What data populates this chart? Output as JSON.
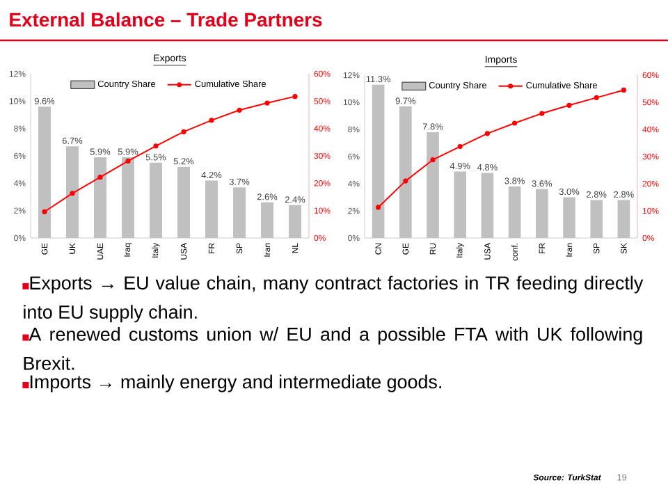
{
  "chart_data": [
    {
      "type": "bar",
      "title": "Exports",
      "categories": [
        "GE",
        "UK",
        "UAE",
        "Iraq",
        "Italy",
        "USA",
        "FR",
        "SP",
        "Iran",
        "NL"
      ],
      "series": [
        {
          "name": "Country Share",
          "type": "bar",
          "color": "#c0c0c0",
          "values": [
            9.6,
            6.7,
            5.9,
            5.9,
            5.5,
            5.2,
            4.2,
            3.7,
            2.6,
            2.4
          ],
          "value_labels": [
            "9.6%",
            "6.7%",
            "5.9%",
            "5.9%",
            "5.5%",
            "5.2%",
            "4.2%",
            "3.7%",
            "2.6%",
            "2.4%"
          ]
        },
        {
          "name": "Cumulative Share",
          "type": "line",
          "axis": "y2",
          "color": "#ff0000",
          "values": [
            9.6,
            16.3,
            22.2,
            28.1,
            33.6,
            38.8,
            43.0,
            46.7,
            49.3,
            51.7
          ]
        }
      ],
      "ylim": [
        0,
        12
      ],
      "yticks": [
        {
          "value": 0,
          "label": "0%"
        },
        {
          "value": 2,
          "label": "2%"
        },
        {
          "value": 4,
          "label": "4%"
        },
        {
          "value": 6,
          "label": "6%"
        },
        {
          "value": 8,
          "label": "8%"
        },
        {
          "value": 10,
          "label": "10%"
        },
        {
          "value": 12,
          "label": "12%"
        }
      ],
      "y2lim": [
        0,
        60
      ],
      "y2ticks": [
        {
          "value": 0,
          "label": "0%"
        },
        {
          "value": 10,
          "label": "10%"
        },
        {
          "value": 20,
          "label": "20%"
        },
        {
          "value": 30,
          "label": "30%"
        },
        {
          "value": 40,
          "label": "40%"
        },
        {
          "value": 50,
          "label": "50%"
        },
        {
          "value": 60,
          "label": "60%"
        }
      ],
      "legend": "top",
      "marker": "circle"
    },
    {
      "type": "bar",
      "title": "Imports",
      "categories": [
        "CN",
        "GE",
        "RU",
        "Italy",
        "USA",
        "conf.",
        "FR",
        "Iran",
        "SP",
        "SK"
      ],
      "series": [
        {
          "name": "Country Share",
          "type": "bar",
          "color": "#c0c0c0",
          "values": [
            11.3,
            9.7,
            7.8,
            4.9,
            4.8,
            3.8,
            3.6,
            3.0,
            2.8,
            2.8
          ],
          "value_labels": [
            "11.3%",
            "9.7%",
            "7.8%",
            "4.9%",
            "4.8%",
            "3.8%",
            "3.6%",
            "3.0%",
            "2.8%",
            "2.8%"
          ]
        },
        {
          "name": "Cumulative Share",
          "type": "line",
          "axis": "y2",
          "color": "#ff0000",
          "values": [
            11.3,
            21.0,
            28.8,
            33.7,
            38.5,
            42.3,
            45.9,
            48.9,
            51.7,
            54.5
          ]
        }
      ],
      "ylim": [
        0,
        12
      ],
      "yticks": [
        {
          "value": 0,
          "label": "0%"
        },
        {
          "value": 2,
          "label": "2%"
        },
        {
          "value": 4,
          "label": "4%"
        },
        {
          "value": 6,
          "label": "6%"
        },
        {
          "value": 8,
          "label": "8%"
        },
        {
          "value": 10,
          "label": "10%"
        },
        {
          "value": 12,
          "label": "12%"
        }
      ],
      "y2lim": [
        0,
        60
      ],
      "y2ticks": [
        {
          "value": 0,
          "label": "0%"
        },
        {
          "value": 10,
          "label": "10%"
        },
        {
          "value": 20,
          "label": "20%"
        },
        {
          "value": 30,
          "label": "30%"
        },
        {
          "value": 40,
          "label": "40%"
        },
        {
          "value": 50,
          "label": "50%"
        },
        {
          "value": 60,
          "label": "60%"
        }
      ],
      "legend": "top",
      "marker": "circle"
    },
    {
      "type": "other",
      "title": "External Balance – Trade Partners",
      "annotations": [
        "Exports → EU value chain, many contract factories in TR feeding directly into EU supply chain.",
        "A renewed customs union w/ EU and a possible FTA with UK following Brexit.",
        "Imports → mainly energy and intermediate goods.",
        "Source: TurkStat",
        "19"
      ]
    }
  ]
}
